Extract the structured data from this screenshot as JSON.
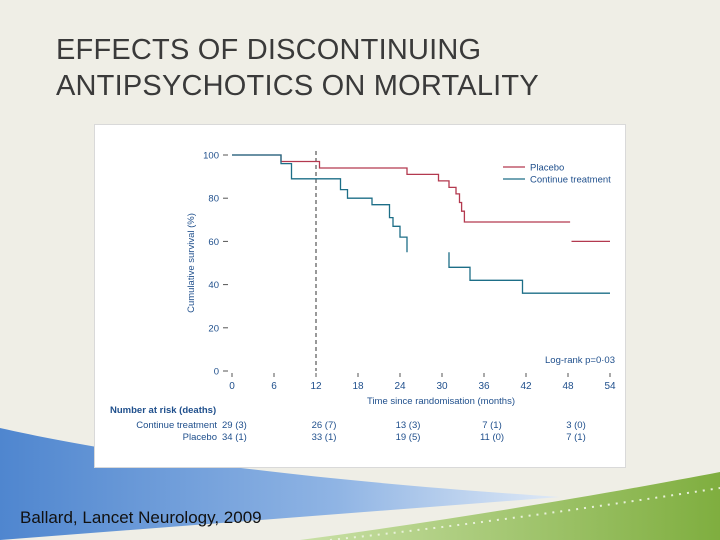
{
  "slide": {
    "title_line1": "EFFECTS OF DISCONTINUING",
    "title_line2": "ANTIPSYCHOTICS ON MORTALITY",
    "citation": "Ballard, Lancet Neurology, 2009"
  },
  "chart_data": {
    "type": "line",
    "title": "",
    "xlabel": "Time since randomisation (months)",
    "ylabel": "Cumulative survival (%)",
    "xlim": [
      0,
      54
    ],
    "ylim": [
      0,
      100
    ],
    "xticks": [
      0,
      6,
      12,
      18,
      24,
      30,
      36,
      42,
      48,
      54
    ],
    "yticks": [
      0,
      20,
      40,
      60,
      80,
      100
    ],
    "grid": false,
    "legend_position": "top-right",
    "reference_line_x": 12,
    "annotation": "Log-rank p=0·03",
    "series": [
      {
        "name": "Placebo",
        "color": "#b3394f",
        "points": [
          [
            0,
            100
          ],
          [
            7,
            100
          ],
          [
            7,
            97
          ],
          [
            12.5,
            97
          ],
          [
            12.5,
            94
          ],
          [
            25,
            94
          ],
          [
            25,
            91
          ],
          [
            29.5,
            91
          ],
          [
            29.5,
            88
          ],
          [
            31,
            88
          ],
          [
            31,
            85
          ],
          [
            32,
            85
          ],
          [
            32,
            82
          ],
          [
            32.5,
            82
          ],
          [
            32.5,
            78
          ],
          [
            32.8,
            78
          ],
          [
            32.8,
            74
          ],
          [
            33.2,
            74
          ],
          [
            33.2,
            69
          ],
          [
            48.3,
            69
          ]
        ],
        "tail": [
          [
            48.5,
            60
          ],
          [
            54,
            60
          ]
        ]
      },
      {
        "name": "Continue treatment",
        "color": "#1d6e87",
        "points": [
          [
            0,
            100
          ],
          [
            7,
            100
          ],
          [
            7,
            96
          ],
          [
            8.5,
            96
          ],
          [
            8.5,
            89
          ],
          [
            15.5,
            89
          ],
          [
            15.5,
            84
          ],
          [
            16.5,
            84
          ],
          [
            16.5,
            80
          ],
          [
            20,
            80
          ],
          [
            20,
            77
          ],
          [
            22.5,
            77
          ],
          [
            22.5,
            71
          ],
          [
            23,
            71
          ],
          [
            23,
            67
          ],
          [
            24,
            67
          ],
          [
            24,
            62
          ],
          [
            25,
            62
          ],
          [
            25,
            55
          ]
        ],
        "tail": [
          [
            31,
            55
          ],
          [
            31,
            48
          ],
          [
            34,
            48
          ],
          [
            34,
            42
          ],
          [
            41.5,
            42
          ],
          [
            41.5,
            36
          ],
          [
            54,
            36
          ]
        ]
      }
    ],
    "risk_table": {
      "heading": "Number at risk (deaths)",
      "rows": [
        {
          "label": "Continue treatment",
          "values": [
            "29 (3)",
            "26 (7)",
            "13 (3)",
            "7 (1)",
            "3 (0)"
          ]
        },
        {
          "label": "Placebo",
          "values": [
            "34 (1)",
            "33 (1)",
            "19 (5)",
            "11 (0)",
            "7 (1)"
          ]
        }
      ],
      "at_months": [
        0,
        12,
        24,
        36,
        48
      ]
    }
  },
  "colors": {
    "background": "#efeee6",
    "title_text": "#3a3a3a",
    "axis_text": "#1f4f8c",
    "risk_text": "#1f4f8c",
    "deco_blue": "#5b8fd1",
    "deco_green": "#8bb84c"
  }
}
